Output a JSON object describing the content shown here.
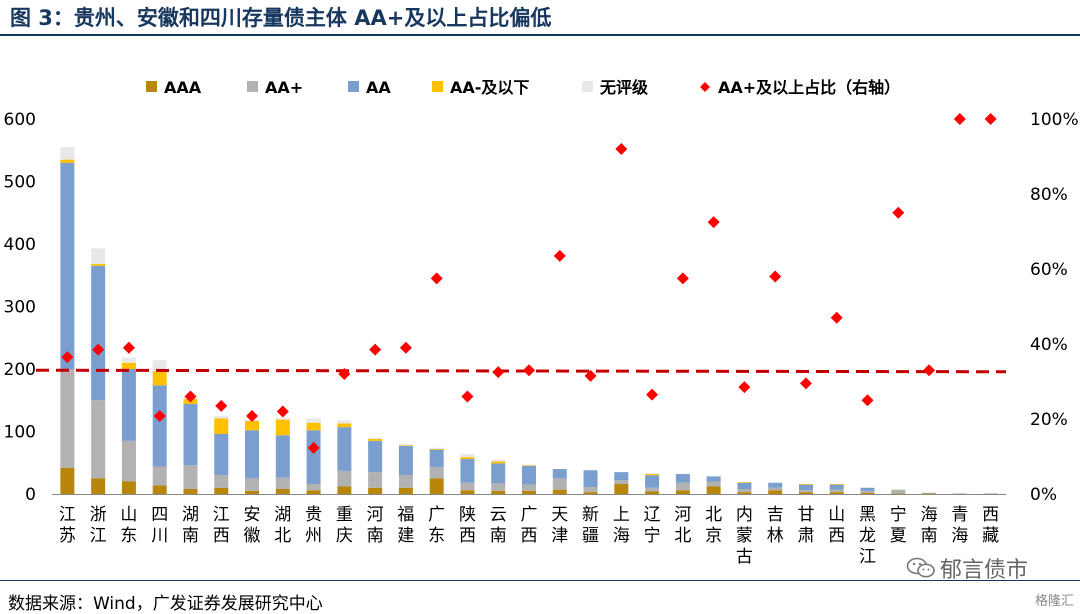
{
  "title": "图 3：贵州、安徽和四川存量债主体 AA+及以上占比偏低",
  "source": "数据来源：Wind，广发证券发展研究中心",
  "watermark": "郁言债市",
  "brand": "格隆汇",
  "chart_data": {
    "type": "bar",
    "stacked": true,
    "categories": [
      "江苏",
      "浙江",
      "山东",
      "四川",
      "湖南",
      "江西",
      "安徽",
      "湖北",
      "贵州",
      "重庆",
      "河南",
      "福建",
      "广东",
      "陕西",
      "云南",
      "广西",
      "天津",
      "新疆",
      "上海",
      "辽宁",
      "河北",
      "北京",
      "内蒙古",
      "吉林",
      "甘肃",
      "山西",
      "黑龙江",
      "宁夏",
      "海南",
      "青海",
      "西藏"
    ],
    "series": [
      {
        "name": "AAA",
        "color": "#B8860B",
        "values": [
          42,
          25,
          20,
          14,
          8,
          10,
          5,
          8,
          6,
          12,
          10,
          10,
          25,
          6,
          5,
          5,
          7,
          3,
          16,
          4,
          6,
          12,
          3,
          6,
          3,
          3,
          2,
          1,
          1,
          0,
          0
        ]
      },
      {
        "name": "AA+",
        "color": "#B2B2B2",
        "values": [
          158,
          125,
          65,
          30,
          38,
          20,
          20,
          18,
          10,
          25,
          25,
          20,
          18,
          12,
          12,
          10,
          18,
          8,
          6,
          6,
          12,
          8,
          5,
          4,
          3,
          4,
          3,
          6,
          1,
          1,
          1
        ]
      },
      {
        "name": "AA",
        "color": "#7A9FCE",
        "values": [
          330,
          215,
          115,
          130,
          98,
          66,
          77,
          68,
          86,
          70,
          50,
          47,
          28,
          38,
          32,
          30,
          15,
          27,
          13,
          20,
          14,
          8,
          10,
          8,
          9,
          8,
          5,
          0,
          0,
          0,
          0
        ]
      },
      {
        "name": "AA-及以下",
        "color": "#FFC000",
        "values": [
          5,
          3,
          10,
          22,
          8,
          25,
          15,
          25,
          12,
          6,
          3,
          1,
          1,
          3,
          3,
          1,
          0,
          0,
          0,
          2,
          0,
          0,
          1,
          0,
          1,
          1,
          0,
          0,
          0,
          0,
          0
        ]
      },
      {
        "name": "无评级",
        "color": "#E8E8E8",
        "values": [
          20,
          25,
          8,
          18,
          3,
          4,
          2,
          3,
          7,
          5,
          2,
          2,
          2,
          5,
          3,
          1,
          0,
          0,
          0,
          1,
          0,
          1,
          0,
          0,
          0,
          0,
          0,
          0,
          0,
          0,
          0
        ]
      },
      {
        "name": "AA+及以上占比（右轴）",
        "type": "scatter",
        "axis": "right",
        "color": "#FF0000",
        "values": [
          36.5,
          38.5,
          39,
          20.8,
          26,
          23.5,
          20.8,
          22,
          12.3,
          32,
          38.5,
          39,
          57.5,
          26,
          32.5,
          33,
          63.5,
          31.5,
          92,
          26.5,
          57.5,
          72.5,
          28.5,
          58,
          29.5,
          47,
          25,
          75,
          33,
          100,
          100
        ]
      }
    ],
    "reference_line": {
      "value": 33,
      "axis": "right",
      "color": "#C00000",
      "style": "dashed"
    },
    "ylim": [
      0,
      600
    ],
    "yticks": [
      "0",
      "100",
      "200",
      "300",
      "400",
      "500",
      "600"
    ],
    "y2lim": [
      0,
      100
    ],
    "y2ticks": [
      "0%",
      "20%",
      "40%",
      "60%",
      "80%",
      "100%"
    ],
    "legend": "top",
    "grid": false
  }
}
